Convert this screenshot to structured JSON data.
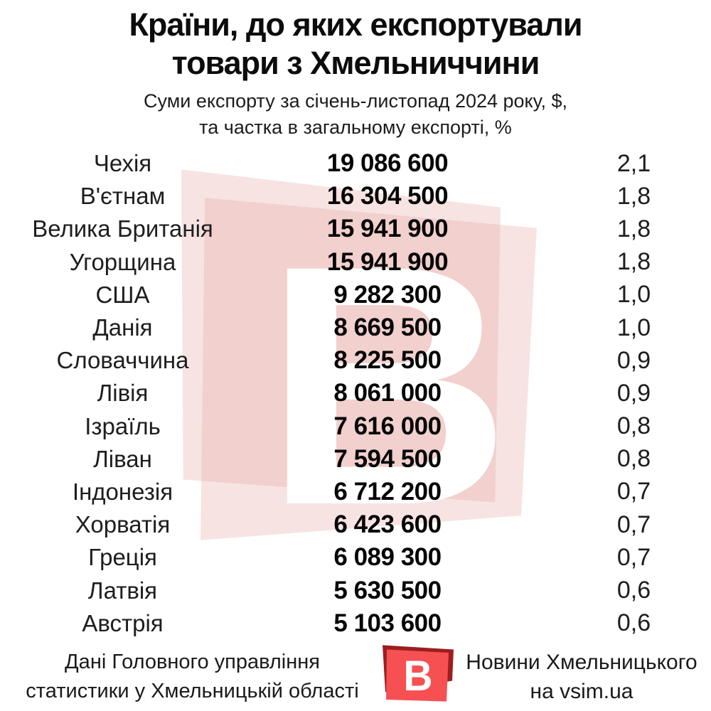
{
  "title": {
    "line1": "Країни, до яких експортували",
    "line2": "товари з Хмельниччини"
  },
  "subtitle": {
    "line1": "Суми експорту за січень-листопад 2024 року, $,",
    "line2": "та частка в загальному експорті, %"
  },
  "table": {
    "rows": [
      {
        "country": "Чехія",
        "amount": "19 086 600",
        "share": "2,1"
      },
      {
        "country": "В'єтнам",
        "amount": "16 304 500",
        "share": "1,8"
      },
      {
        "country": "Велика Британія",
        "amount": "15 941 900",
        "share": "1,8"
      },
      {
        "country": "Угорщина",
        "amount": "15 941 900",
        "share": "1,8"
      },
      {
        "country": "США",
        "amount": "9 282 300",
        "share": "1,0"
      },
      {
        "country": "Данія",
        "amount": "8 669 500",
        "share": "1,0"
      },
      {
        "country": "Словаччина",
        "amount": "8 225 500",
        "share": "0,9"
      },
      {
        "country": "Лівія",
        "amount": "8 061 000",
        "share": "0,9"
      },
      {
        "country": "Ізраїль",
        "amount": "7 616 000",
        "share": "0,8"
      },
      {
        "country": "Ліван",
        "amount": "7 594 500",
        "share": "0,8"
      },
      {
        "country": "Індонезія",
        "amount": "6 712 200",
        "share": "0,7"
      },
      {
        "country": "Хорватія",
        "amount": "6 423 600",
        "share": "0,7"
      },
      {
        "country": "Греція",
        "amount": "6 089 300",
        "share": "0,7"
      },
      {
        "country": "Латвія",
        "amount": "5 630 500",
        "share": "0,6"
      },
      {
        "country": "Австрія",
        "amount": "5 103 600",
        "share": "0,6"
      }
    ]
  },
  "footer": {
    "source_line1": "Дані Головного управління",
    "source_line2": "статистики у Хмельницькій області",
    "brand_line1": "Новини Хмельницького",
    "brand_line2": "на vsim.ua",
    "logo_letter": "В"
  },
  "watermark": {
    "letter": "В"
  },
  "colors": {
    "logo_red": "#f75052",
    "logo_dark_red": "#9c1e1e",
    "watermark_pink": "#f8e6e5",
    "text_black": "#0c0c0c"
  },
  "chart_data": {
    "type": "table",
    "title": "Країни, до яких експортували товари з Хмельниччини",
    "subtitle": "Суми експорту за січень-листопад 2024 року, $, та частка в загальному експорті, %",
    "columns": [
      "country",
      "export_usd",
      "share_pct"
    ],
    "rows": [
      [
        "Чехія",
        19086600,
        2.1
      ],
      [
        "В'єтнам",
        16304500,
        1.8
      ],
      [
        "Велика Британія",
        15941900,
        1.8
      ],
      [
        "Угорщина",
        15941900,
        1.8
      ],
      [
        "США",
        9282300,
        1.0
      ],
      [
        "Данія",
        8669500,
        1.0
      ],
      [
        "Словаччина",
        8225500,
        0.9
      ],
      [
        "Лівія",
        8061000,
        0.9
      ],
      [
        "Ізраїль",
        7616000,
        0.8
      ],
      [
        "Ліван",
        7594500,
        0.8
      ],
      [
        "Індонезія",
        6712200,
        0.7
      ],
      [
        "Хорватія",
        6423600,
        0.7
      ],
      [
        "Греція",
        6089300,
        0.7
      ],
      [
        "Латвія",
        5630500,
        0.6
      ],
      [
        "Австрія",
        5103600,
        0.6
      ]
    ]
  }
}
